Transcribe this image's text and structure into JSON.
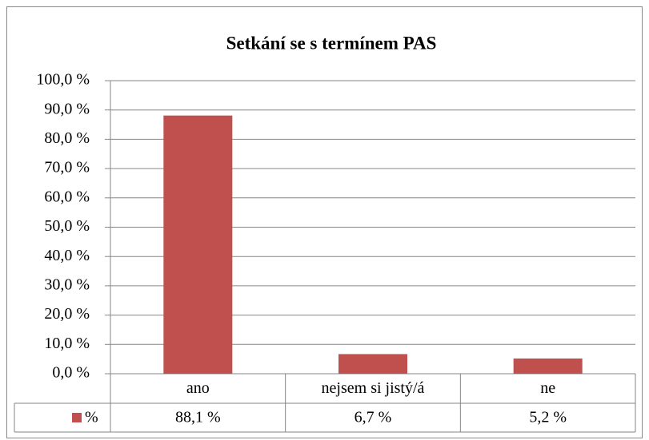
{
  "chart_data": {
    "type": "bar",
    "title": "Setkání se s termínem PAS",
    "categories": [
      "ano",
      "nejsem si jistý/á",
      "ne"
    ],
    "series": [
      {
        "name": "%",
        "color": "#c0504d",
        "values": [
          88.1,
          6.7,
          5.2
        ],
        "value_labels": [
          "88,1 %",
          "6,7 %",
          "5,2 %"
        ]
      }
    ],
    "ylim": [
      0,
      100
    ],
    "yticks": [
      {
        "value": 0,
        "label": "0,0 %"
      },
      {
        "value": 10,
        "label": "10,0 %"
      },
      {
        "value": 20,
        "label": "20,0 %"
      },
      {
        "value": 30,
        "label": "30,0 %"
      },
      {
        "value": 40,
        "label": "40,0 %"
      },
      {
        "value": 50,
        "label": "50,0 %"
      },
      {
        "value": 60,
        "label": "60,0 %"
      },
      {
        "value": 70,
        "label": "70,0 %"
      },
      {
        "value": 80,
        "label": "80,0 %"
      },
      {
        "value": 90,
        "label": "90,0 %"
      },
      {
        "value": 100,
        "label": "100,0 %"
      }
    ],
    "grid": true
  }
}
